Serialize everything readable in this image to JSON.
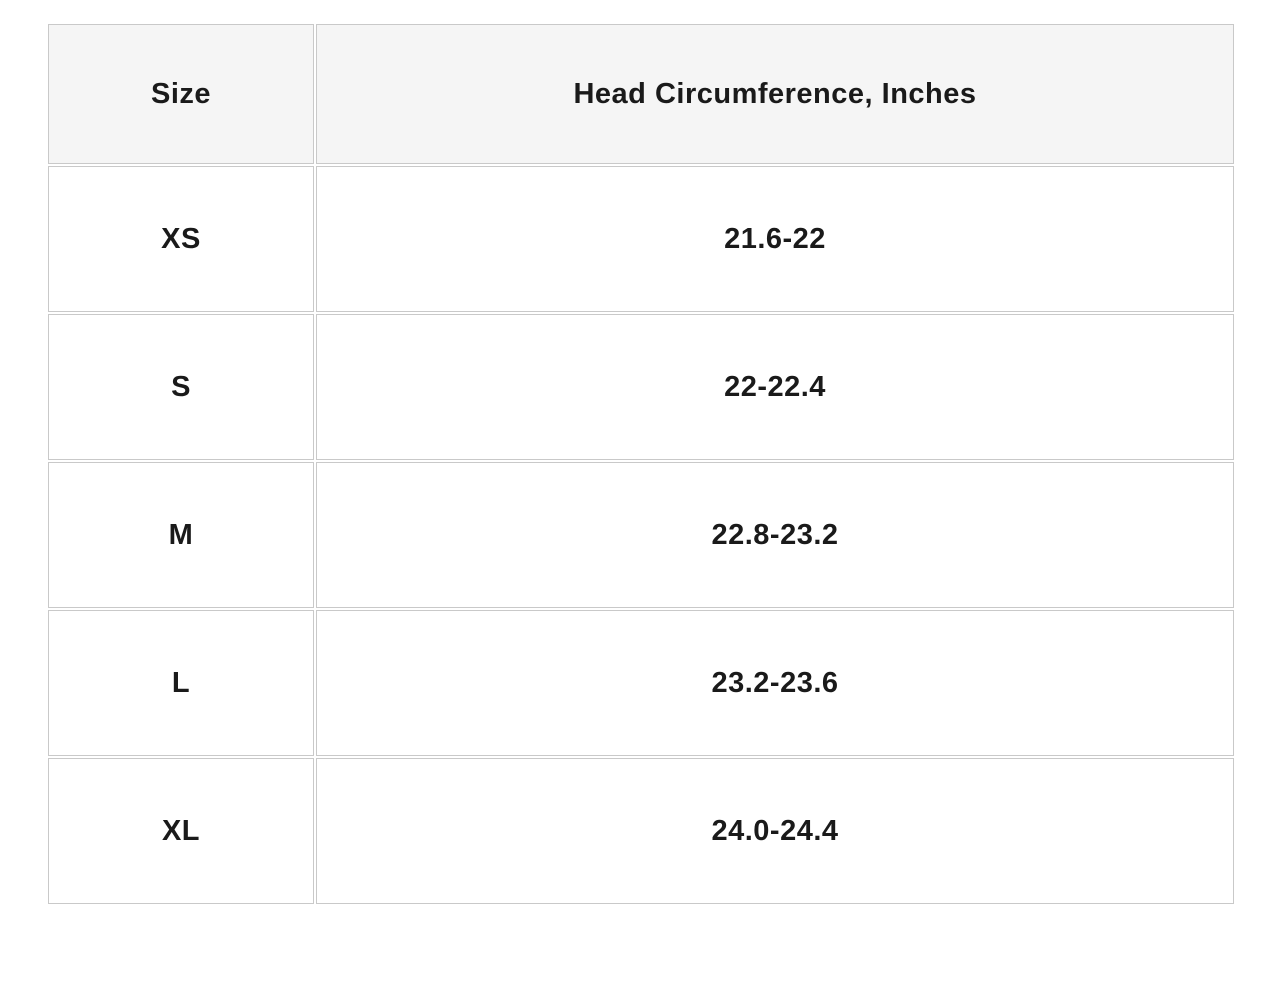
{
  "table": {
    "columns": {
      "size_label": "Size",
      "circumference_label": "Head Circumference, Inches"
    },
    "rows": [
      {
        "size": "XS",
        "circumference": "21.6-22"
      },
      {
        "size": "S",
        "circumference": "22-22.4"
      },
      {
        "size": "M",
        "circumference": "22.8-23.2"
      },
      {
        "size": "L",
        "circumference": "23.2-23.6"
      },
      {
        "size": "XL",
        "circumference": "24.0-24.4"
      }
    ]
  },
  "colors": {
    "header_bg": "#f5f5f5",
    "row_bg": "#ffffff",
    "border": "#c9c9c9",
    "text": "#1a1a1a",
    "page_bg": "#ffffff"
  }
}
